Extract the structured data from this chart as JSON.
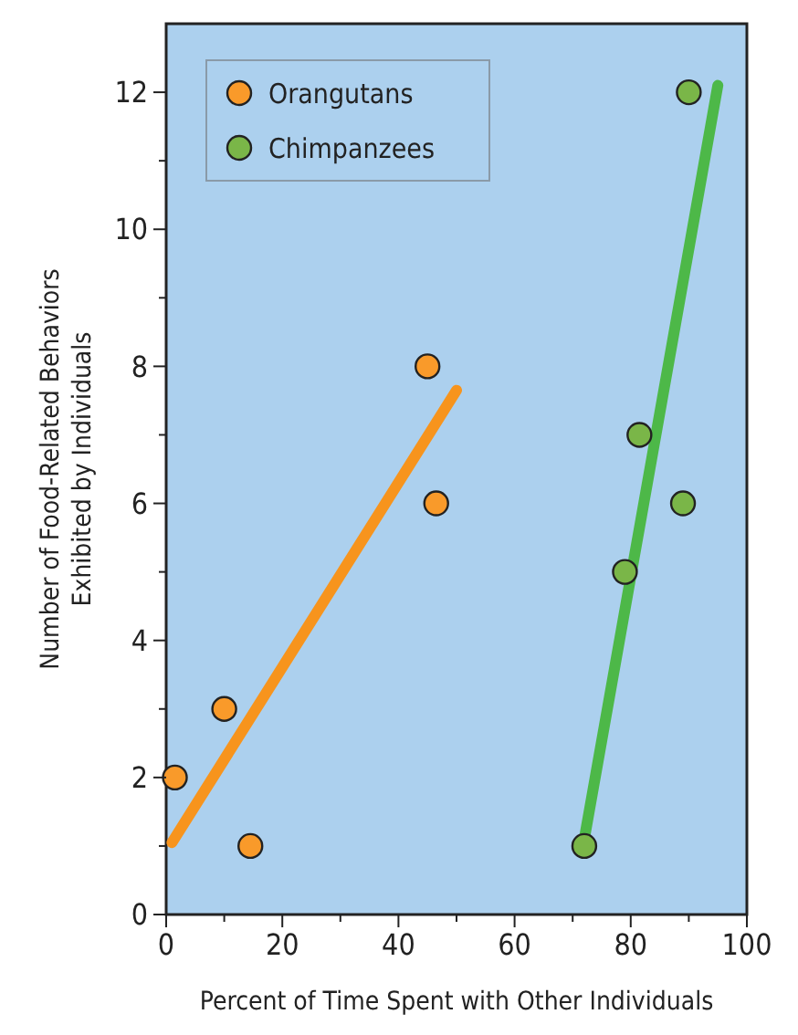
{
  "chart_data": {
    "type": "scatter",
    "xlabel": "Percent of Time Spent with Other Individuals",
    "ylabel": "Number of Food-Related Behaviors\nExhibited by Individuals",
    "xlim": [
      0,
      100
    ],
    "ylim": [
      0,
      13
    ],
    "xticks": [
      0,
      {
        "value": 10,
        "label": null
      },
      20,
      {
        "value": 30,
        "label": null
      },
      40,
      {
        "value": 50,
        "label": null
      },
      60,
      {
        "value": 70,
        "label": null
      },
      80,
      {
        "value": 90,
        "label": null
      },
      100
    ],
    "yticks": [
      0,
      {
        "value": 1,
        "label": null
      },
      2,
      {
        "value": 3,
        "label": null
      },
      4,
      {
        "value": 5,
        "label": null
      },
      6,
      {
        "value": 7,
        "label": null
      },
      8,
      {
        "value": 9,
        "label": null
      },
      10,
      {
        "value": 11,
        "label": null
      },
      12
    ],
    "legend": "top left",
    "grid": false,
    "series": [
      {
        "type": "line",
        "color": "#f7941d",
        "x": [
          1,
          50
        ],
        "values": [
          1.05,
          7.65
        ]
      },
      {
        "type": "line",
        "color": "#4db848",
        "x": [
          72,
          95
        ],
        "values": [
          1.1,
          12.1
        ]
      },
      {
        "name": "Orangutans",
        "color": "#f99a2a",
        "marker": "circle",
        "x": [
          1.5,
          10,
          14.5,
          45,
          46.5
        ],
        "values": [
          2,
          3,
          1,
          8,
          6
        ]
      },
      {
        "name": "Chimpanzees",
        "color": "#7ab648",
        "marker": "circle",
        "x": [
          72,
          79,
          81.5,
          89,
          90
        ],
        "values": [
          1,
          5,
          7,
          6,
          12
        ]
      }
    ]
  }
}
